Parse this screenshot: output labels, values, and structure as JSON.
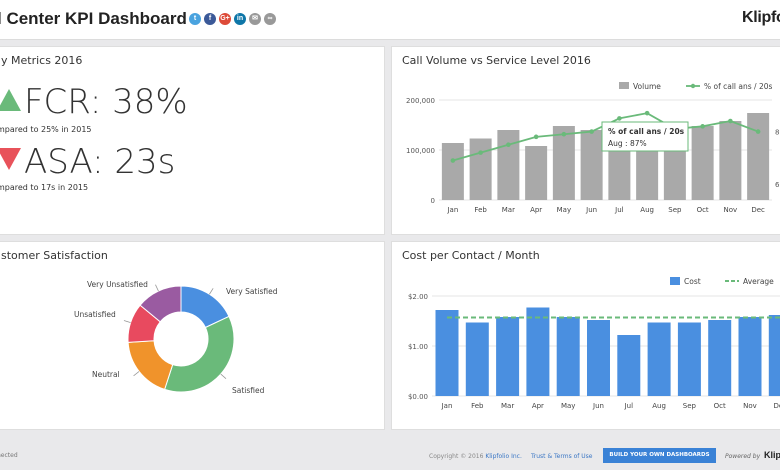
{
  "header": {
    "title": "l Center KPI Dashboard",
    "brand": "Klipfo",
    "share_icons": [
      {
        "name": "twitter-icon",
        "glyph": "t",
        "color": "#4aa3df"
      },
      {
        "name": "facebook-icon",
        "glyph": "f",
        "color": "#3b5998"
      },
      {
        "name": "googleplus-icon",
        "glyph": "G+",
        "color": "#dd4b39"
      },
      {
        "name": "linkedin-icon",
        "glyph": "in",
        "color": "#0e76a8"
      },
      {
        "name": "email-icon",
        "glyph": "✉",
        "color": "#999999"
      },
      {
        "name": "link-icon",
        "glyph": "∞",
        "color": "#999999"
      }
    ]
  },
  "metrics": {
    "title": "y Metrics 2016",
    "fcr": {
      "value": "FCR: 38%",
      "compare": "mpared to 25% in 2015",
      "trend": "up",
      "color": "#6aba7a"
    },
    "asa": {
      "value": "ASA: 23s",
      "compare": "mpared to 17s in 2015",
      "trend": "down",
      "color": "#e8525a"
    }
  },
  "calls": {
    "title": "Call Volume vs Service Level 2016",
    "legend": {
      "volume": "Volume",
      "service": "% of call ans / 20s"
    },
    "tooltip": {
      "title": "% of call ans / 20s",
      "month": "Aug",
      "value": "87%"
    },
    "y_ticks": [
      "200,000",
      "100,000",
      "0"
    ],
    "y2_ticks": [
      "80",
      "60"
    ]
  },
  "csat": {
    "title": "stomer Satisfaction"
  },
  "cost": {
    "title": "Cost per Contact / Month",
    "legend": {
      "cost": "Cost",
      "average": "Average"
    },
    "y_ticks": [
      "$2.00",
      "$1.00",
      "$0.00"
    ]
  },
  "chart_data": [
    {
      "type": "bar",
      "title": "Call Volume vs Service Level 2016",
      "categories": [
        "Jan",
        "Feb",
        "Mar",
        "Apr",
        "May",
        "Jun",
        "Jul",
        "Aug",
        "Sep",
        "Oct",
        "Nov",
        "Dec"
      ],
      "series": [
        {
          "name": "Volume",
          "type": "bar",
          "axis": "left",
          "values": [
            114000,
            123000,
            140000,
            108000,
            148000,
            140000,
            150000,
            147000,
            125000,
            148000,
            158000,
            174000
          ],
          "color": "#a9a9a9"
        },
        {
          "name": "% of call ans / 20s",
          "type": "line",
          "axis": "right",
          "values": [
            69,
            72,
            75,
            78,
            79,
            80,
            85,
            87,
            81,
            82,
            84,
            80
          ],
          "color": "#6aba7a"
        }
      ],
      "ylim": [
        0,
        200000
      ],
      "y2lim": [
        54,
        92
      ],
      "legend": "top-right"
    },
    {
      "type": "pie",
      "title": "stomer Satisfaction",
      "donut": true,
      "slices": [
        {
          "label": "Very Satisfied",
          "value": 18,
          "color": "#4a8fe0"
        },
        {
          "label": "Satisfied",
          "value": 37,
          "color": "#6aba7a"
        },
        {
          "label": "Neutral",
          "value": 19,
          "color": "#f0932b"
        },
        {
          "label": "Unsatisfied",
          "value": 12,
          "color": "#e84a5f"
        },
        {
          "label": "Very Unsatisfied",
          "value": 14,
          "color": "#9a5ba1"
        }
      ]
    },
    {
      "type": "bar",
      "title": "Cost per Contact / Month",
      "categories": [
        "Jan",
        "Feb",
        "Mar",
        "Apr",
        "May",
        "Jun",
        "Jul",
        "Aug",
        "Sep",
        "Oct",
        "Nov",
        "Dec"
      ],
      "series": [
        {
          "name": "Cost",
          "type": "bar",
          "values": [
            1.72,
            1.47,
            1.58,
            1.77,
            1.58,
            1.52,
            1.22,
            1.47,
            1.47,
            1.52,
            1.58,
            1.62
          ],
          "color": "#4a8fe0"
        },
        {
          "name": "Average",
          "type": "dashed-line",
          "values": [
            1.57,
            1.57,
            1.57,
            1.57,
            1.57,
            1.57,
            1.57,
            1.57,
            1.57,
            1.57,
            1.57,
            1.57
          ],
          "color": "#6aba7a"
        }
      ],
      "ylim": [
        0,
        2
      ],
      "legend": "top-right"
    }
  ],
  "footer": {
    "status": "nected",
    "copyright": "Copyright © 2016 ",
    "company": "Klipfolio Inc.",
    "trust": "Trust & Terms of Use",
    "cta": "BUILD YOUR OWN DASHBOARDS",
    "powered": "Powered by",
    "logo": "Klipfo"
  }
}
